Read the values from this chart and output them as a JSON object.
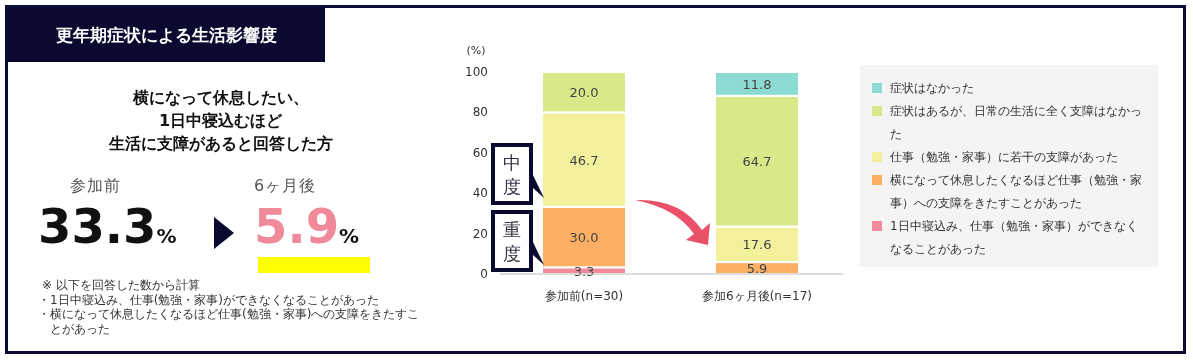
{
  "chart_data": [
    {
      "type": "other",
      "title": "更年期症状による生活影響度",
      "subtitle": "横になって休息したい、",
      "categories": [
        "参加前",
        "6ヶ月後"
      ],
      "values": [
        33.3,
        5.9
      ],
      "value_labels": [
        "33.3%",
        "5.9%"
      ],
      "colors": [
        "#111111",
        "#f08a9a"
      ],
      "annotations": [
        "1日中寝込むほど",
        "生活に支障があると回答した方",
        "※ 以下を回答した数から計算",
        "・1日中寝込み、仕事(勉強・家事)ができなくなることがあった",
        "・横になって休息したくなるほど仕事(勉強・家事)への支障をきたすことがあった"
      ]
    },
    {
      "type": "bar",
      "stacked": true,
      "ylabel": "(%)",
      "categories": [
        "参加前(n=30)",
        "参加6ヶ月後(n=17)"
      ],
      "ylim": [
        0,
        100
      ],
      "yticks": [
        0,
        20,
        40,
        60,
        80,
        100
      ],
      "legend": "right",
      "series": [
        {
          "name": "1日中寝込み、仕事（勉強・家事）ができなくなることがあった",
          "color": "#f28a9b",
          "values": [
            3.3,
            null
          ],
          "value_labels": [
            "3.3",
            null
          ]
        },
        {
          "name": "横になって休息したくなるほど仕事（勉強・家事）への支障をきたすことがあった",
          "color": "#fdb064",
          "values": [
            30.0,
            5.9
          ],
          "value_labels": [
            "30.0",
            "5.9"
          ]
        },
        {
          "name": "仕事（勉強・家事）に若干の支障があった",
          "color": "#f3f09c",
          "values": [
            46.7,
            17.6
          ],
          "value_labels": [
            "46.7",
            "17.6"
          ]
        },
        {
          "name": "症状はあるが、日常の生活に全く支障はなかった",
          "color": "#d9e98a",
          "values": [
            20.0,
            64.7
          ],
          "value_labels": [
            "20.0",
            "64.7"
          ]
        },
        {
          "name": "症状はなかった",
          "color": "#8cdcd4",
          "values": [
            null,
            11.8
          ],
          "value_labels": [
            null,
            "11.8"
          ]
        }
      ],
      "annotations": [
        "中度",
        "重度"
      ]
    }
  ]
}
